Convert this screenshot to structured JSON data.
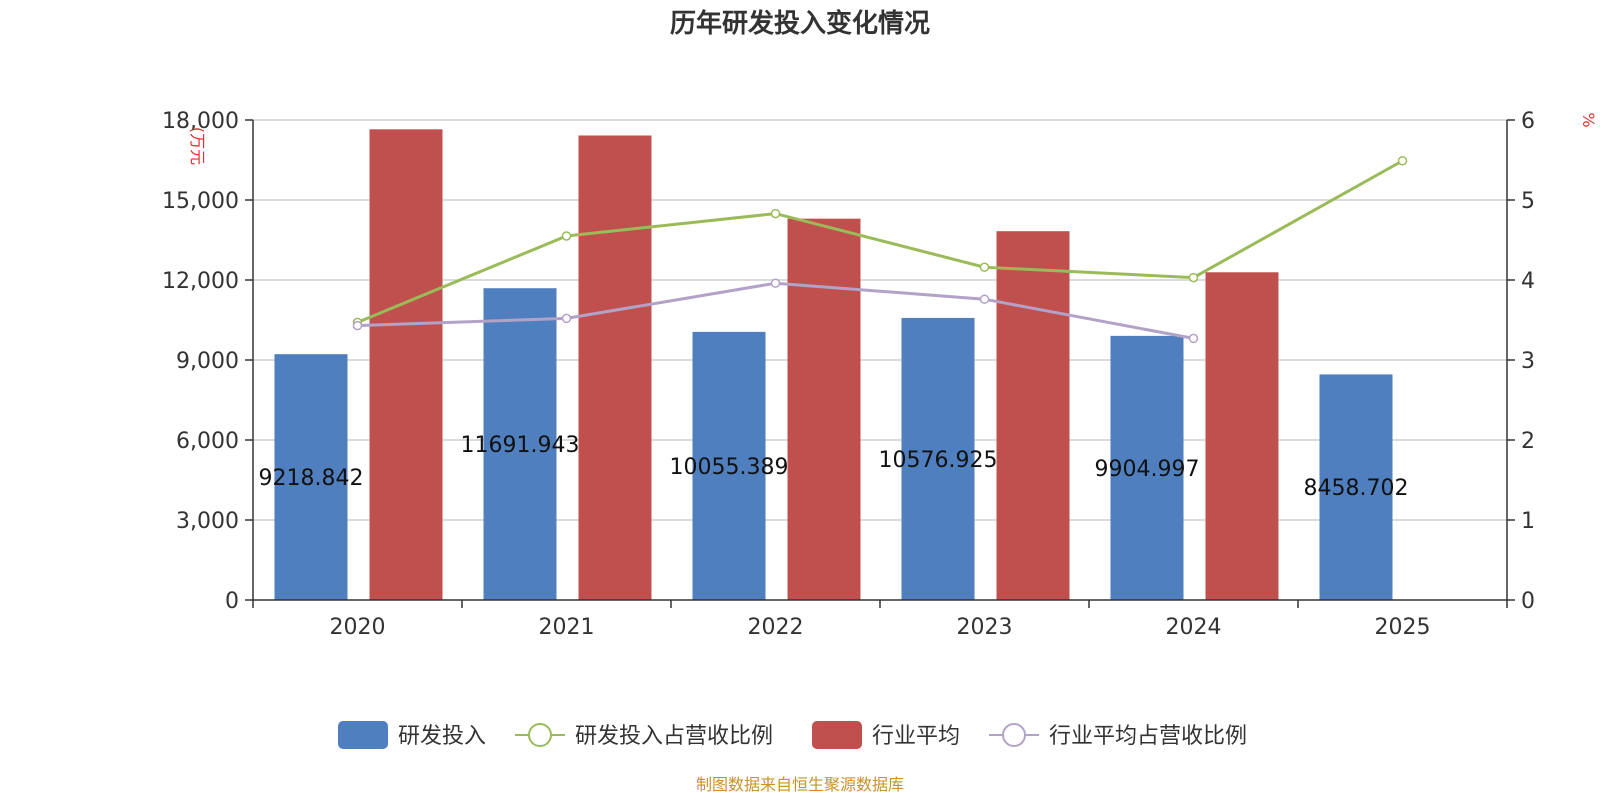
{
  "chart_data": {
    "type": "bar",
    "title": "历年研发投入变化情况",
    "categories": [
      "2020",
      "2021",
      "2022",
      "2023",
      "2024",
      "2025"
    ],
    "y_left": {
      "unit": "(万元",
      "min": 0,
      "max": 18000,
      "ticks": [
        "0",
        "3,000",
        "6,000",
        "9,000",
        "12,000",
        "15,000",
        "18,000"
      ]
    },
    "y_right": {
      "unit": "%",
      "min": 0,
      "max": 6,
      "ticks": [
        "0",
        "1",
        "2",
        "3",
        "4",
        "5",
        "6"
      ]
    },
    "series": [
      {
        "name": "研发投入",
        "type": "bar",
        "axis": "left",
        "color": "#4f7fbe",
        "values": [
          9218.842,
          11691.943,
          10055.389,
          10576.925,
          9904.997,
          8458.702
        ],
        "labels": [
          "9218.842",
          "11691.943",
          "10055.389",
          "10576.925",
          "9904.997",
          "8458.702"
        ]
      },
      {
        "name": "研发投入占营收比例",
        "type": "line",
        "axis": "right",
        "color": "#9bbb59",
        "values": [
          3.47,
          4.55,
          4.83,
          4.16,
          4.03,
          5.49
        ]
      },
      {
        "name": "行业平均",
        "type": "bar",
        "axis": "left",
        "color": "#c0504d",
        "values": [
          17650,
          17420,
          14300,
          13830,
          12290,
          null
        ]
      },
      {
        "name": "行业平均占营收比例",
        "type": "line",
        "axis": "right",
        "color": "#b3a2c7",
        "values": [
          3.43,
          3.52,
          3.96,
          3.76,
          3.27,
          null
        ]
      }
    ],
    "grid": true,
    "legend": "bottom-center",
    "source": "制图数据来自恒生聚源数据库"
  }
}
